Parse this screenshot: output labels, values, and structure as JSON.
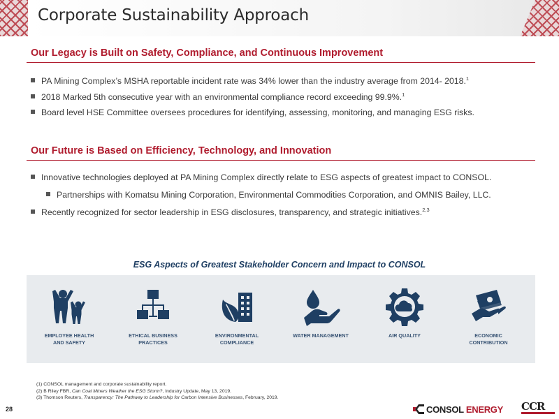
{
  "header": {
    "title": "Corporate Sustainability Approach"
  },
  "legacy": {
    "heading": "Our Legacy is Built on Safety, Compliance, and Continuous Improvement",
    "bullets": [
      {
        "text": "PA Mining Complex’s MSHA reportable incident rate was 34% lower than the industry average from 2014- 2018.",
        "sup": "1"
      },
      {
        "text": "2018 Marked 5th consecutive year with an environmental compliance record exceeding 99.9%.",
        "sup": "1"
      },
      {
        "text": "Board level HSE Committee oversees procedures for identifying, assessing, monitoring, and managing ESG risks.",
        "sup": ""
      }
    ]
  },
  "future": {
    "heading": "Our Future is Based on Efficiency, Technology, and Innovation",
    "bullets": [
      {
        "text": "Innovative technologies deployed at PA Mining Complex directly relate to ESG aspects of greatest impact to CONSOL.",
        "sup": ""
      },
      {
        "text": "Partnerships with Komatsu Mining Corporation, Environmental Commodities Corporation, and OMNIS Bailey, LLC.",
        "sup": ""
      },
      {
        "text": "Recently recognized for sector leadership in ESG disclosures, transparency, and strategic initiatives.",
        "sup": "2,3"
      }
    ]
  },
  "esg": {
    "title": "ESG Aspects of Greatest Stakeholder Concern and Impact to CONSOL",
    "icon_color": "#1f3f63",
    "items": [
      {
        "icon": "people-icon",
        "line1": "EMPLOYEE HEALTH",
        "line2": "AND SAFETY"
      },
      {
        "icon": "org-chart-icon",
        "line1": "ETHICAL BUSINESS",
        "line2": "PRACTICES"
      },
      {
        "icon": "leaf-building-icon",
        "line1": "ENVIRONMENTAL",
        "line2": "COMPLIANCE"
      },
      {
        "icon": "water-hand-icon",
        "line1": "WATER MANAGEMENT",
        "line2": ""
      },
      {
        "icon": "cloud-gear-icon",
        "line1": "AIR QUALITY",
        "line2": ""
      },
      {
        "icon": "money-hand-icon",
        "line1": "ECONOMIC",
        "line2": "CONTRIBUTION"
      }
    ]
  },
  "footnotes": {
    "f1": "(1) CONSOL management and corporate sustainability report.",
    "f2_pre": "(2) B Riley FBR, ",
    "f2_italic": "Can Coal Miners Weather the ESG Storm?",
    "f2_post": ", Industry Update, May 13, 2019.",
    "f3_pre": "(3) Thomson Reuters, ",
    "f3_italic": "Transparency: The Pathway to Leadership for Carbon Intensive Businesses",
    "f3_post": ", February, 2019."
  },
  "footer": {
    "page_number": "28",
    "logo_left": "CONSOL",
    "logo_right": "ENERGY",
    "logo_mark": "CONSOL-logo-icon",
    "ccr_logo": "CCR"
  },
  "colors": {
    "accent": "#b01c2e",
    "navy": "#1f3f63",
    "panel": "#e8ebee"
  }
}
